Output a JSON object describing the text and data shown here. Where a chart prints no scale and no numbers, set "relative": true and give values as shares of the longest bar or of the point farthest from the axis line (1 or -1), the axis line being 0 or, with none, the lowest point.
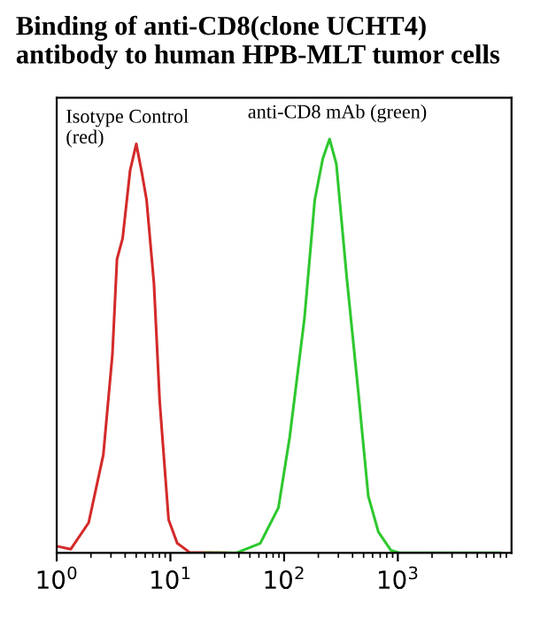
{
  "chart_data": {
    "type": "line",
    "title": "Binding of anti-CD8(clone UCHT4)\nantibody to human HPB-MLT tumor cells",
    "relative": true,
    "log": "x",
    "xlim": [
      1,
      10000
    ],
    "xticks": [
      {
        "value": 1,
        "label": "10$^{0}$"
      },
      {
        "value": 10,
        "label": "10$^{1}$"
      },
      {
        "value": 100,
        "label": "10$^{2}$"
      },
      {
        "value": 1000,
        "label": "10$^{3}$"
      }
    ],
    "tick_labels": "x",
    "annotations": [
      "Isotype Control\n(red)",
      "anti-CD8 mAb (green)"
    ],
    "series": [
      {
        "color": "#d42a2a",
        "x": [
          1.01,
          1.33,
          1.91,
          2.57,
          3.09,
          3.39,
          3.8,
          4.42,
          5.01,
          5.62,
          6.17,
          7.16,
          8.05,
          9.64,
          11.5,
          14.8,
          31.6
        ],
        "values": [
          0.016,
          0.009,
          0.073,
          0.237,
          0.48,
          0.71,
          0.76,
          0.924,
          0.988,
          0.917,
          0.853,
          0.652,
          0.366,
          0.08,
          0.023,
          0.001,
          0
        ]
      },
      {
        "color": "#2ec82e",
        "x": [
          20,
          38,
          61.7,
          69.2,
          89.1,
          112,
          151,
          186,
          219,
          251,
          288,
          355,
          447,
          550,
          676,
          871,
          1047,
          7943
        ],
        "values": [
          0,
          0,
          0.023,
          0.05,
          0.109,
          0.28,
          0.567,
          0.853,
          0.953,
          1,
          0.94,
          0.667,
          0.395,
          0.137,
          0.05,
          0.006,
          0,
          0
        ]
      }
    ]
  }
}
